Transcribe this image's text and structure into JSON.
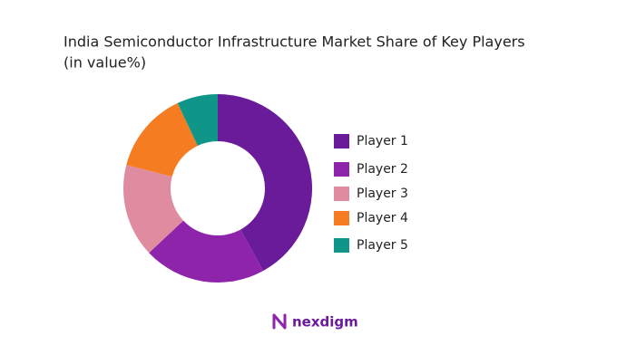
{
  "chart_data": {
    "type": "pie",
    "title": "India Semiconductor Infrastructure Market Share of Key Players",
    "subtitle": "(in value%)",
    "categories": [
      "Player 1",
      "Player 2",
      "Player 3",
      "Player 4",
      "Player 5"
    ],
    "values": [
      42,
      21,
      16,
      14,
      7
    ],
    "colors": [
      "#6a1b9a",
      "#8e24aa",
      "#e08ca0",
      "#f57c20",
      "#0f9688"
    ],
    "legend": "right"
  },
  "logo": "nexdigm"
}
